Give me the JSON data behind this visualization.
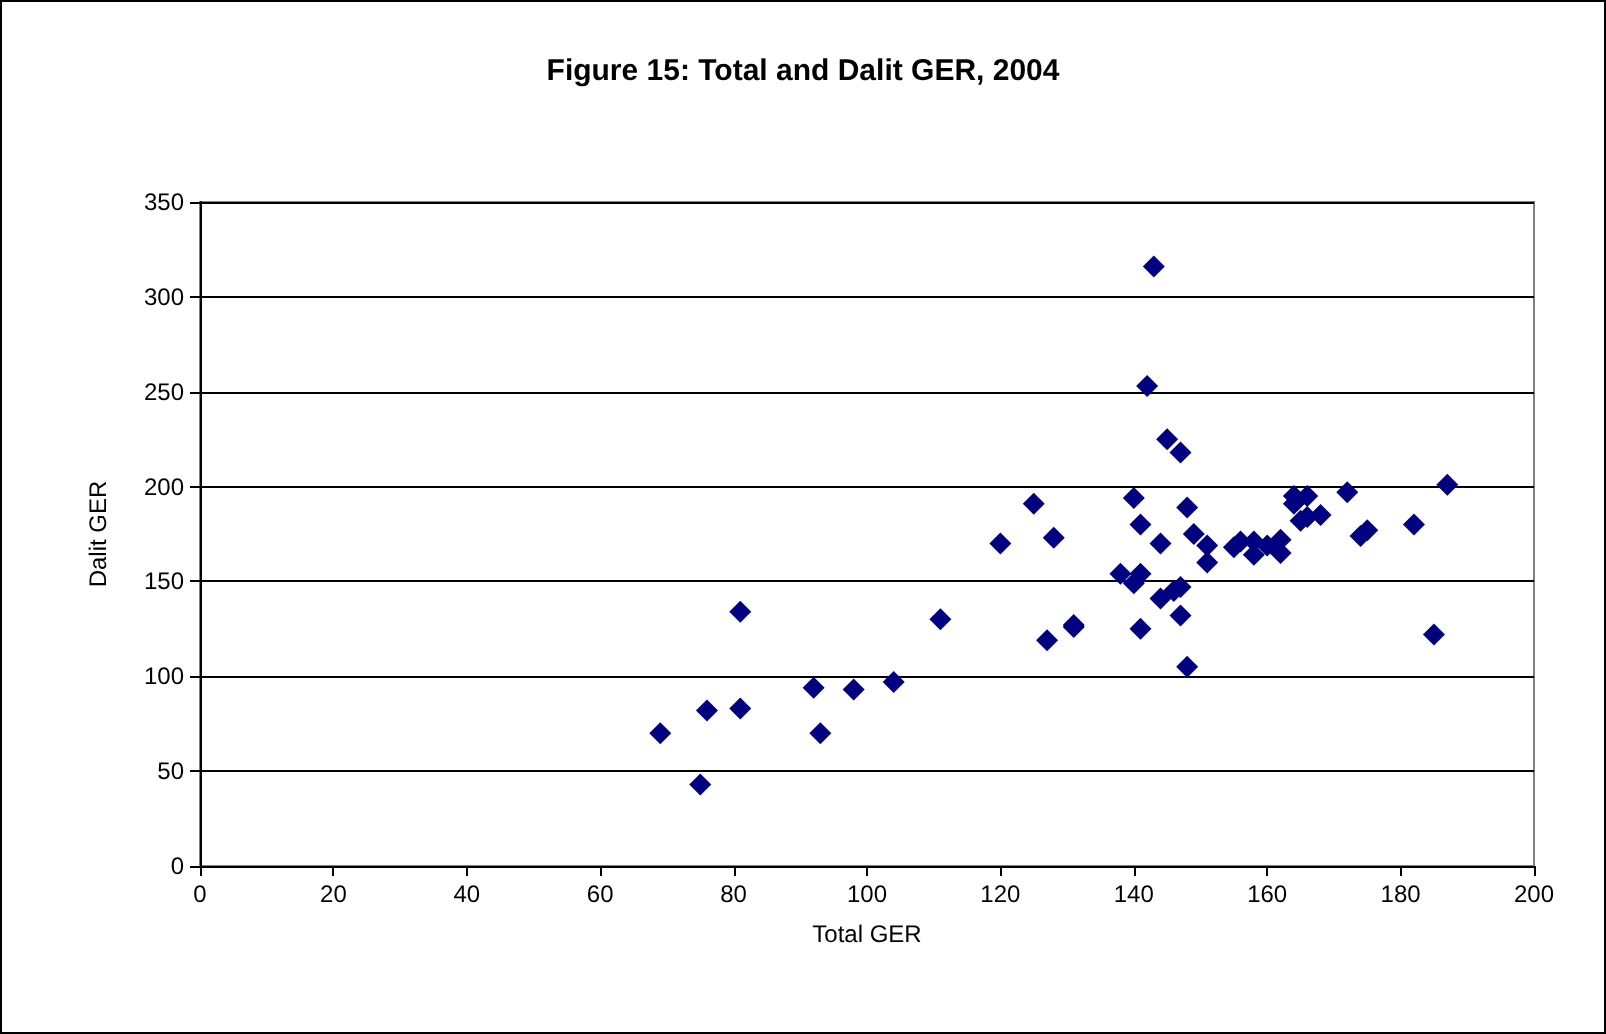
{
  "chart_data": {
    "type": "scatter",
    "title": "Figure 15: Total and Dalit GER, 2004",
    "xlabel": "Total GER",
    "ylabel": "Dalit GER",
    "x": [
      69,
      75,
      76,
      81,
      81,
      92,
      93,
      98,
      104,
      111,
      120,
      125,
      127,
      128,
      131,
      131,
      138,
      140,
      140,
      141,
      141,
      141,
      142,
      143,
      144,
      144,
      145,
      146,
      147,
      147,
      147,
      148,
      148,
      149,
      151,
      151,
      155,
      156,
      158,
      158,
      160,
      162,
      162,
      164,
      164,
      165,
      166,
      166,
      168,
      172,
      174,
      175,
      182,
      185,
      187
    ],
    "values": [
      70,
      43,
      82,
      134,
      83,
      94,
      70,
      93,
      97,
      130,
      170,
      191,
      119,
      173,
      126,
      127,
      154,
      149,
      194,
      180,
      125,
      154,
      253,
      316,
      170,
      141,
      225,
      145,
      218,
      132,
      147,
      105,
      189,
      175,
      160,
      169,
      168,
      171,
      164,
      171,
      169,
      165,
      172,
      191,
      195,
      182,
      195,
      184,
      185,
      197,
      174,
      177,
      180,
      122,
      201
    ],
    "color": "#000080",
    "marker": "diamond",
    "xlim": [
      0,
      200
    ],
    "xticks": [
      0,
      20,
      40,
      60,
      80,
      100,
      120,
      140,
      160,
      180,
      200
    ],
    "ylim": [
      0,
      350
    ],
    "yticks": [
      0,
      50,
      100,
      150,
      200,
      250,
      300,
      350
    ],
    "grid": "y"
  }
}
